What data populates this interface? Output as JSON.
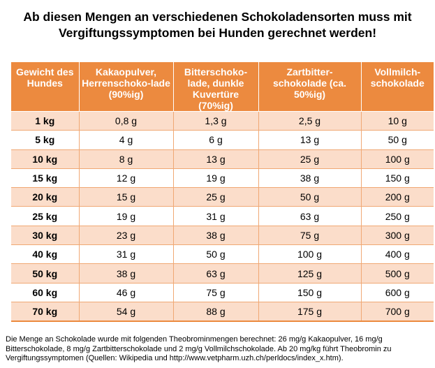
{
  "title": "Ab diesen Mengen an verschiedenen Schokoladensorten muss mit Vergiftungssymptomen bei Hunden gerechnet werden!",
  "table": {
    "headers": [
      "Gewicht des Hundes",
      "Kakaopulver, Herrenschoko-lade (90%ig)",
      "Bitterschoko-lade, dunkle Kuvertüre (70%ig)",
      "Zartbitter-schokolade (ca. 50%ig)",
      "Vollmilch-schokolade"
    ],
    "rows": [
      [
        "1 kg",
        "0,8 g",
        "1,3 g",
        "2,5 g",
        "10 g"
      ],
      [
        "5 kg",
        "4 g",
        "6 g",
        "13 g",
        "50 g"
      ],
      [
        "10 kg",
        "8 g",
        "13 g",
        "25 g",
        "100 g"
      ],
      [
        "15 kg",
        "12 g",
        "19 g",
        "38 g",
        "150 g"
      ],
      [
        "20 kg",
        "15 g",
        "25 g",
        "50 g",
        "200 g"
      ],
      [
        "25 kg",
        "19 g",
        "31 g",
        "63 g",
        "250 g"
      ],
      [
        "30 kg",
        "23 g",
        "38 g",
        "75 g",
        "300 g"
      ],
      [
        "40 kg",
        "31 g",
        "50 g",
        "100 g",
        "400 g"
      ],
      [
        "50 kg",
        "38 g",
        "63 g",
        "125 g",
        "500 g"
      ],
      [
        "60 kg",
        "46 g",
        "75 g",
        "150 g",
        "600 g"
      ],
      [
        "70 kg",
        "54 g",
        "88 g",
        "175 g",
        "700 g"
      ]
    ]
  },
  "footnote": "Die Menge an Schokolade wurde mit folgenden Theobrominmengen berechnet: 26 mg/g Kakaopulver, 16 mg/g Bitterschokolade, 8 mg/g Zartbitterschokolade und 2 mg/g Vollmilchschokolade. Ab 20 mg/kg führt Theobromin zu Vergiftungssymptomen (Quellen: Wikipedia und http://www.vetpharm.uzh.ch/perldocs/index_x.htm).",
  "colors": {
    "header_bg": "#ec8a3f",
    "header_text": "#ffffff",
    "row_highlight": "#fbddca"
  }
}
